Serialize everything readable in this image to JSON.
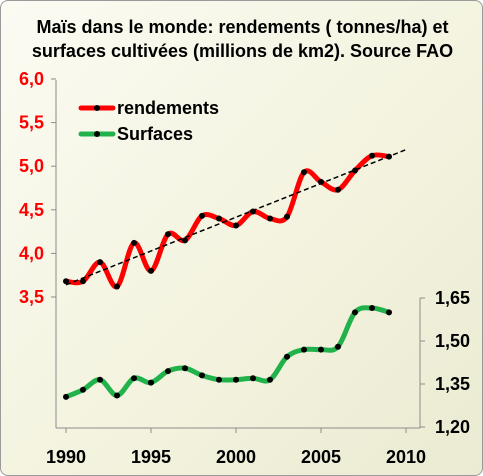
{
  "chart_data": {
    "type": "line",
    "title_line1": "Maïs dans le monde: rendements ( tonnes/ha) et",
    "title_line2": "surfaces cultivées (millions de km2). Source FAO",
    "x": [
      1990,
      1991,
      1992,
      1993,
      1994,
      1995,
      1996,
      1997,
      1998,
      1999,
      2000,
      2001,
      2002,
      2003,
      2004,
      2005,
      2006,
      2007,
      2008,
      2009
    ],
    "xticks": [
      "1990",
      "1995",
      "2000",
      "2005",
      "2010"
    ],
    "xlim": [
      1990,
      2010
    ],
    "y_left": {
      "ticks": [
        "3,5",
        "4,0",
        "4,5",
        "5,0",
        "5,5",
        "6,0"
      ],
      "ylim": [
        3.5,
        6.0
      ],
      "color": "#ff0000"
    },
    "y_right": {
      "ticks": [
        "1,20",
        "1,35",
        "1,50",
        "1,65"
      ],
      "ylim": [
        1.2,
        1.65
      ],
      "color": "#000000"
    },
    "series": [
      {
        "name": "rendements",
        "axis": "left",
        "color": "#ff0000",
        "values": [
          3.68,
          3.68,
          3.9,
          3.62,
          4.12,
          3.8,
          4.22,
          4.15,
          4.43,
          4.4,
          4.32,
          4.48,
          4.4,
          4.42,
          4.93,
          4.82,
          4.73,
          4.95,
          5.12,
          5.11
        ]
      },
      {
        "name": "Surfaces",
        "axis": "right",
        "color": "#22b24c",
        "values": [
          1.305,
          1.33,
          1.365,
          1.31,
          1.37,
          1.355,
          1.395,
          1.405,
          1.38,
          1.365,
          1.365,
          1.37,
          1.365,
          1.445,
          1.47,
          1.47,
          1.48,
          1.6,
          1.615,
          1.6
        ]
      }
    ],
    "trendline": {
      "axis": "left",
      "x": [
        1990,
        2010
      ],
      "y": [
        3.64,
        5.19
      ],
      "style": "dashed",
      "color": "#000000"
    },
    "legend": "top-left",
    "grid": false
  }
}
